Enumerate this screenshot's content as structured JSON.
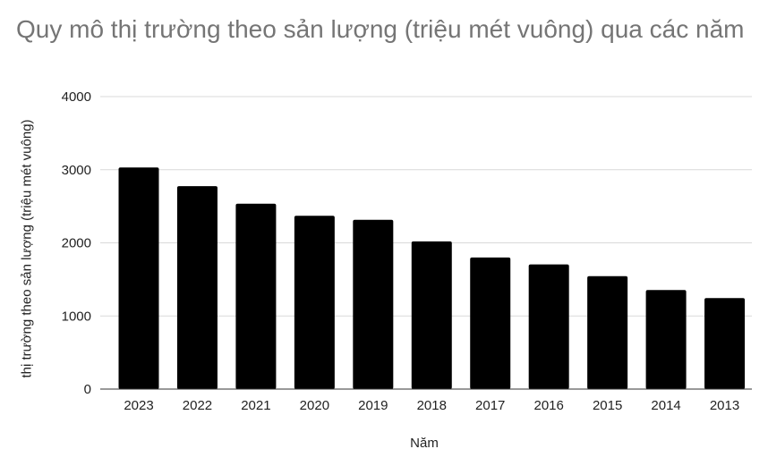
{
  "chart_data": {
    "type": "bar",
    "title": "Quy mô thị trường theo sản lượng (triệu mét vuông) qua các năm",
    "xlabel": "Năm",
    "ylabel": "thị trường theo sản lượng (triệu mét vuông)",
    "categories": [
      "2023",
      "2022",
      "2021",
      "2020",
      "2019",
      "2018",
      "2017",
      "2016",
      "2015",
      "2014",
      "2013"
    ],
    "values": [
      3030,
      2775,
      2535,
      2370,
      2315,
      2020,
      1800,
      1705,
      1545,
      1355,
      1245
    ],
    "ylim": [
      0,
      4000
    ],
    "yticks": [
      "0",
      "1000",
      "2000",
      "3000",
      "4000"
    ],
    "grid": true,
    "legend": "none",
    "bar_color": "#000000",
    "grid_color": "#d9d9d9"
  }
}
